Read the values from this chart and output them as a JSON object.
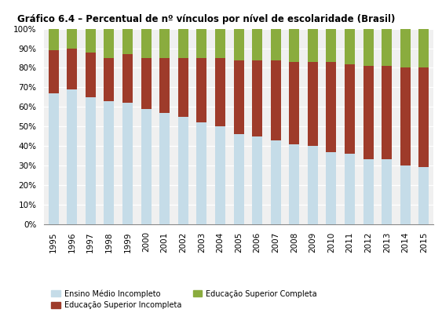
{
  "years": [
    1995,
    1996,
    1997,
    1998,
    1999,
    2000,
    2001,
    2002,
    2003,
    2004,
    2005,
    2006,
    2007,
    2008,
    2009,
    2010,
    2011,
    2012,
    2013,
    2014,
    2015
  ],
  "ensino_medio_incompleto": [
    67,
    69,
    65,
    63,
    62,
    59,
    57,
    55,
    52,
    50,
    46,
    45,
    43,
    41,
    40,
    37,
    36,
    33,
    33,
    30,
    29
  ],
  "educacao_superior_incompleta": [
    22,
    21,
    23,
    22,
    25,
    26,
    28,
    30,
    33,
    35,
    38,
    39,
    41,
    42,
    43,
    46,
    46,
    48,
    48,
    50,
    51
  ],
  "educacao_superior_completa": [
    11,
    10,
    12,
    15,
    13,
    15,
    15,
    15,
    15,
    15,
    16,
    16,
    16,
    17,
    17,
    17,
    18,
    19,
    19,
    20,
    20
  ],
  "color_s1": "#c5dce8",
  "color_s2": "#9e3b2a",
  "color_s3": "#8aac3e",
  "title": "Gráfico 6.4 – Percentual de nº vínculos por nível de escolaridade (Brasil)",
  "label_s1": "Ensino Médio Incompleto",
  "label_s2": "Educação Superior Incompleta",
  "label_s3": "Educação Superior Completa",
  "ylim": [
    0,
    100
  ],
  "yticks": [
    0,
    10,
    20,
    30,
    40,
    50,
    60,
    70,
    80,
    90,
    100
  ],
  "bar_width": 0.55,
  "figsize": [
    5.63,
    4.08
  ],
  "dpi": 100
}
